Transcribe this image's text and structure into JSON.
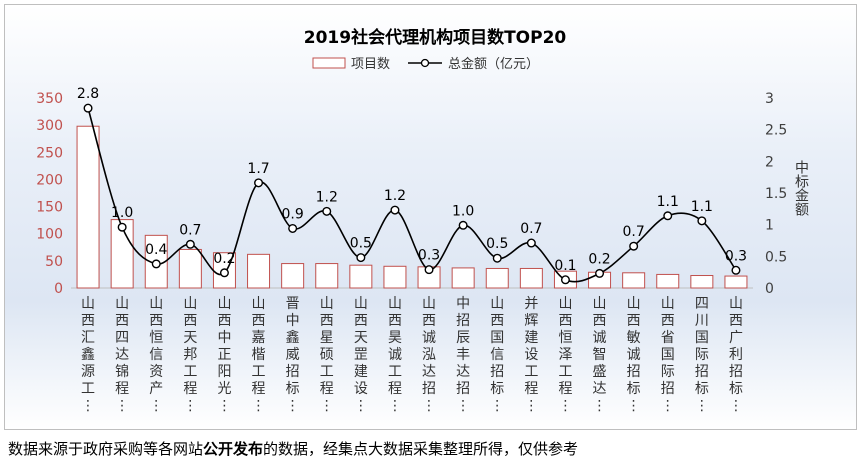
{
  "chart_data": {
    "type": "bar",
    "title": "2019社会代理机构项目数TOP20",
    "legend": {
      "bar_label": "项目数",
      "line_label": "总金额（亿元）",
      "position": "top-center"
    },
    "categories": [
      "山西汇鑫源工…",
      "山西四达锦程…",
      "山西恒信资产…",
      "山西天邦工程…",
      "山西中正阳光…",
      "山西嘉楷工程…",
      "晋中鑫威招标…",
      "山西星硕工程…",
      "山西天罡建设…",
      "山西昊诚工程…",
      "山西诚泓达招…",
      "中招辰丰达招…",
      "山西国信招标…",
      "并辉建设工程…",
      "山西恒泽工程…",
      "山西诚智盛达…",
      "山西敏诚招标…",
      "山西省国际招…",
      "四川国际招标…",
      "山西广利招标…"
    ],
    "series": [
      {
        "name": "项目数",
        "type": "bar",
        "axis": "left",
        "values": [
          298,
          126,
          97,
          71,
          65,
          62,
          45,
          45,
          42,
          40,
          39,
          37,
          36,
          36,
          31,
          29,
          28,
          25,
          23,
          22
        ]
      },
      {
        "name": "总金额（亿元）",
        "type": "line",
        "axis": "right",
        "values": [
          2.84,
          0.96,
          0.38,
          0.69,
          0.24,
          1.66,
          0.94,
          1.21,
          0.48,
          1.23,
          0.29,
          0.99,
          0.47,
          0.71,
          0.13,
          0.23,
          0.66,
          1.14,
          1.06,
          0.28
        ],
        "labels": [
          "2.8",
          "1.0",
          "0.4",
          "0.7",
          "0.2",
          "1.7",
          "0.9",
          "1.2",
          "0.5",
          "1.2",
          "0.3",
          "1.0",
          "0.5",
          "0.7",
          "0.1",
          "0.2",
          "0.7",
          "1.1",
          "1.1",
          "0.3"
        ]
      }
    ],
    "y_left": {
      "ylim": [
        0,
        350
      ],
      "ticks": [
        "0",
        "50",
        "100",
        "150",
        "200",
        "250",
        "300",
        "350"
      ]
    },
    "y_right": {
      "ylim": [
        0,
        3
      ],
      "ticks": [
        "0",
        "0.5",
        "1",
        "1.5",
        "2",
        "2.5",
        "3"
      ],
      "label": "中标金额"
    },
    "colors": {
      "bar_stroke": "#c0504d",
      "bar_fill": "#ffffff",
      "line": "#000000",
      "left_axis_text": "#c0504d",
      "right_axis_text": "#404040"
    }
  },
  "footnote": {
    "part1": "数据来源于政府采购等各网站",
    "bold": "公开发布",
    "part2": "的数据，经集点大数据采集整理所得，仅供参考"
  }
}
